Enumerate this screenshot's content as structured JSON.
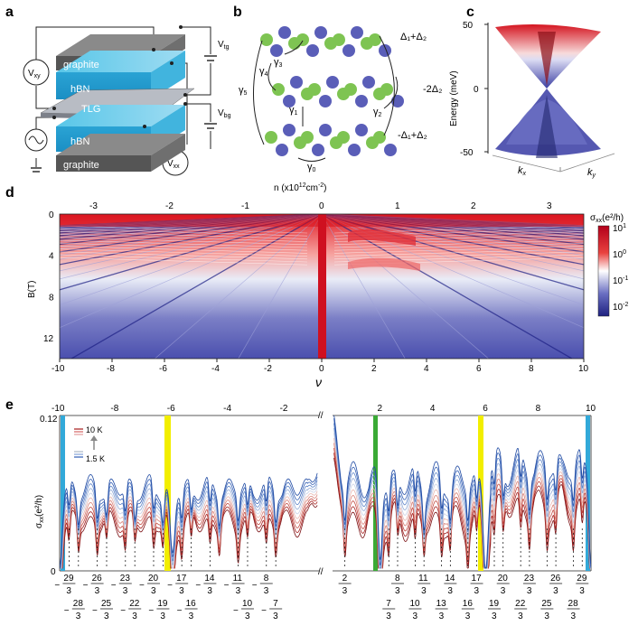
{
  "panels": {
    "a": {
      "label": "a",
      "layers": [
        "graphite",
        "hBN",
        "TLG",
        "hBN",
        "graphite"
      ],
      "voltages": {
        "vxy": "V",
        "vxy_sub": "xy",
        "vtg": "V",
        "vtg_sub": "tg",
        "vbg": "V",
        "vbg_sub": "bg",
        "vxx": "V",
        "vxx_sub": "xx"
      }
    },
    "b": {
      "label": "b",
      "hoppings": [
        "γ",
        "γ",
        "γ",
        "γ",
        "γ",
        "γ"
      ],
      "hopping_subs": [
        "3",
        "4",
        "5",
        "1",
        "2",
        "0"
      ],
      "potentials": {
        "top": "Δ₁+Δ₂",
        "mid": "-2Δ₂",
        "bot": "-Δ₁+Δ₂"
      }
    },
    "c": {
      "label": "c",
      "ylabel": "Energy (meV)",
      "yticks": [
        "50",
        "0",
        "-50"
      ],
      "kx": "k",
      "kx_sub": "x",
      "ky": "k",
      "ky_sub": "y"
    },
    "d": {
      "label": "d",
      "top_axis_label": "n (x10",
      "top_axis_sup": "12",
      "top_axis_rest": "cm",
      "top_axis_sup2": "-2",
      "top_axis_end": ")",
      "top_ticks": [
        "-3",
        "-2",
        "-1",
        "0",
        "1",
        "2",
        "3"
      ],
      "bottom_ticks": [
        "-10",
        "-8",
        "-6",
        "-4",
        "-2",
        "0",
        "2",
        "4",
        "6",
        "8",
        "10"
      ],
      "xlabel": "ν",
      "ylabel": "B(T)",
      "yticks": [
        "0",
        "4",
        "8",
        "12"
      ],
      "colorbar_label": "σ",
      "colorbar_sub": "xx",
      "colorbar_unit": "(e²/h)",
      "colorbar_ticks": [
        {
          "base": "10",
          "exp": "1"
        },
        {
          "base": "10",
          "exp": "0"
        },
        {
          "base": "10",
          "exp": "-1"
        },
        {
          "base": "10",
          "exp": "-2"
        }
      ]
    },
    "e": {
      "label": "e",
      "top_ticks_left": [
        "-10",
        "-8",
        "-6",
        "-4",
        "-2"
      ],
      "top_ticks_right": [
        "2",
        "4",
        "6",
        "8",
        "10"
      ],
      "ylabel": "σ",
      "ylabel_sub": "xx",
      "ylabel_unit": "(e²/h)",
      "yticks": [
        "0.12",
        "0"
      ],
      "legend_high": "10 K",
      "legend_low": "1.5 K",
      "break_mark": "//",
      "fractions_left_upper": [
        "29",
        "26",
        "23",
        "20",
        "17",
        "14",
        "11",
        "8"
      ],
      "fractions_left_lower": [
        "28",
        "25",
        "22",
        "19",
        "16",
        "10",
        "7"
      ],
      "fractions_right_upper": [
        "2",
        "8",
        "11",
        "14",
        "17",
        "20",
        "23",
        "26",
        "29"
      ],
      "fractions_right_lower": [
        "7",
        "10",
        "13",
        "16",
        "19",
        "22",
        "25",
        "28"
      ],
      "denominator": "3",
      "minus": "−"
    }
  },
  "colors": {
    "red": "#c8102e",
    "blue": "#2e3192",
    "yellow": "#f2ee00",
    "green": "#3aaa35",
    "cyan": "#32a9d9"
  }
}
